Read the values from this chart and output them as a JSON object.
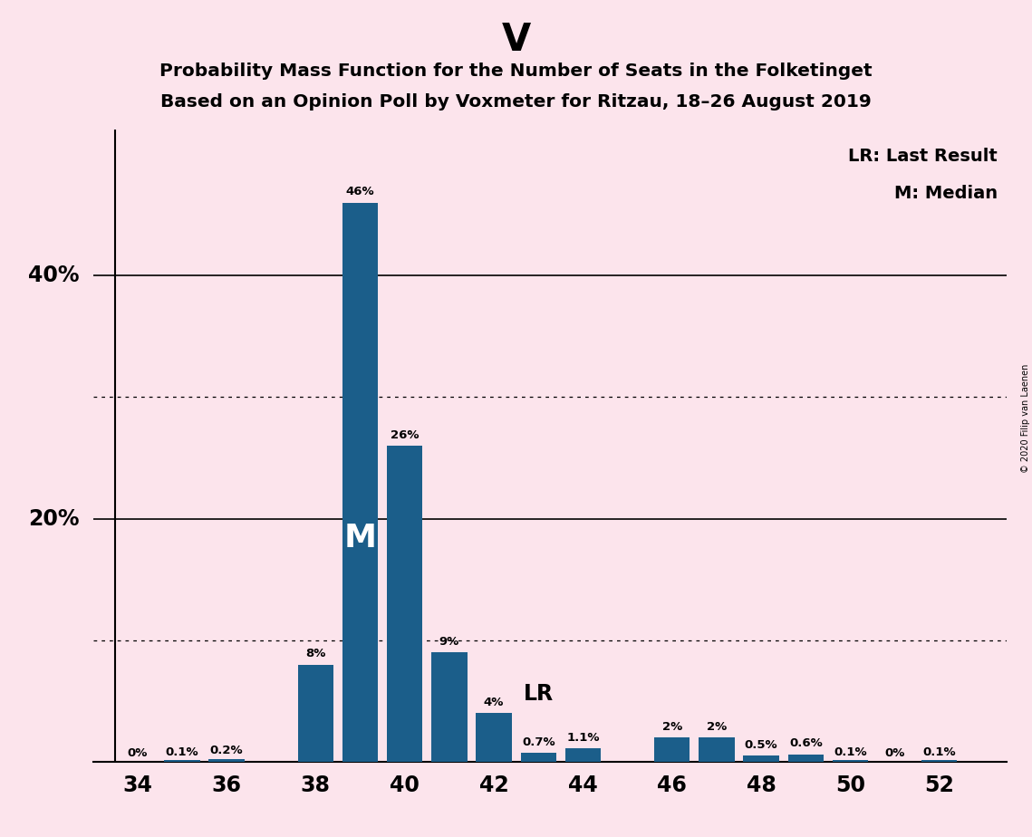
{
  "title_main": "V",
  "title_line1": "Probability Mass Function for the Number of Seats in the Folketinget",
  "title_line2": "Based on an Opinion Poll by Voxmeter for Ritzau, 18–26 August 2019",
  "background_color": "#fce4ec",
  "bar_color": "#1b5e8a",
  "seats": [
    34,
    35,
    36,
    37,
    38,
    39,
    40,
    41,
    42,
    43,
    44,
    45,
    46,
    47,
    48,
    49,
    50,
    51,
    52
  ],
  "probabilities": [
    0.0,
    0.001,
    0.002,
    0.0,
    0.08,
    0.46,
    0.26,
    0.09,
    0.04,
    0.007,
    0.011,
    0.0,
    0.02,
    0.02,
    0.005,
    0.006,
    0.001,
    0.0,
    0.001
  ],
  "bar_labels": [
    "0%",
    "0.1%",
    "0.2%",
    "",
    "8%",
    "46%",
    "26%",
    "9%",
    "4%",
    "0.7%",
    "1.1%",
    "",
    "2%",
    "2%",
    "0.5%",
    "0.6%",
    "0.1%",
    "0%",
    "0.1%"
  ],
  "median_seat": 39,
  "lr_seat": 43,
  "xlim": [
    33.0,
    53.5
  ],
  "ylim": [
    0,
    0.52
  ],
  "solid_yticks": [
    0.0,
    0.2,
    0.4
  ],
  "dotted_yticks": [
    0.1,
    0.3
  ],
  "ylabel_positions": [
    [
      0.2,
      "20%"
    ],
    [
      0.4,
      "40%"
    ]
  ],
  "xlabel_ticks": [
    34,
    36,
    38,
    40,
    42,
    44,
    46,
    48,
    50,
    52
  ],
  "copyright_text": "© 2020 Filip van Laenen",
  "bar_width": 0.8
}
